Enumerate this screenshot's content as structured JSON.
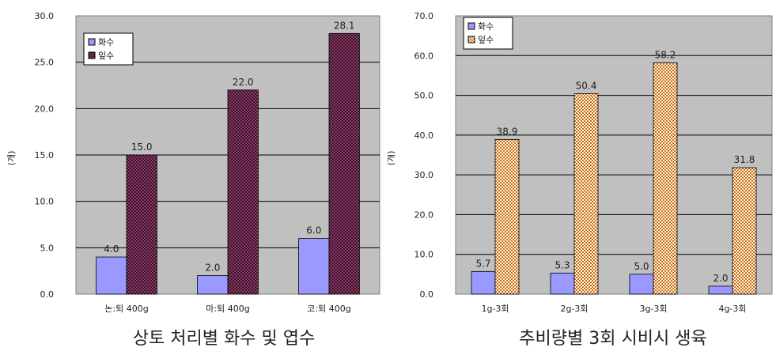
{
  "chart_data": [
    {
      "type": "bar",
      "title": "상토 처리별 화수 및 엽수",
      "ylabel": "(개)",
      "categories": [
        "논:퇴 400g",
        "마:퇴 400g",
        "코:퇴 400g"
      ],
      "series": [
        {
          "name": "화수",
          "values": [
            4.0,
            2.0,
            6.0
          ],
          "color": "#9999ff"
        },
        {
          "name": "잎수",
          "values": [
            15.0,
            22.0,
            28.1
          ],
          "color": "#993366"
        }
      ],
      "data_labels": [
        [
          "4.0",
          "2.0",
          "6.0"
        ],
        [
          "15.0",
          "22.0",
          "28.1"
        ]
      ],
      "ylim": [
        0,
        30
      ],
      "yticks": [
        "0.0",
        "5.0",
        "10.0",
        "15.0",
        "20.0",
        "25.0",
        "30.0"
      ],
      "grid": true,
      "legend": "top-left",
      "plot_bg": "#c0c0c0"
    },
    {
      "type": "bar",
      "title": "추비량별 3회 시비시 생육",
      "ylabel": "(개)",
      "categories": [
        "1g-3회",
        "2g-3회",
        "3g-3회",
        "4g-3회"
      ],
      "series": [
        {
          "name": "화수",
          "values": [
            5.7,
            5.3,
            5.0,
            2.0
          ],
          "color": "#9999ff"
        },
        {
          "name": "잎수",
          "values": [
            38.9,
            50.4,
            58.2,
            31.8
          ],
          "color": "#ffcc99"
        }
      ],
      "data_labels": [
        [
          "5.7",
          "5.3",
          "5.0",
          "2.0"
        ],
        [
          "38.9",
          "50.4",
          "58.2",
          "31.8"
        ]
      ],
      "ylim": [
        0,
        70
      ],
      "yticks": [
        "0.0",
        "10.0",
        "20.0",
        "30.0",
        "40.0",
        "50.0",
        "60.0",
        "70.0"
      ],
      "grid": true,
      "legend": "top-left",
      "plot_bg": "#c0c0c0"
    }
  ]
}
